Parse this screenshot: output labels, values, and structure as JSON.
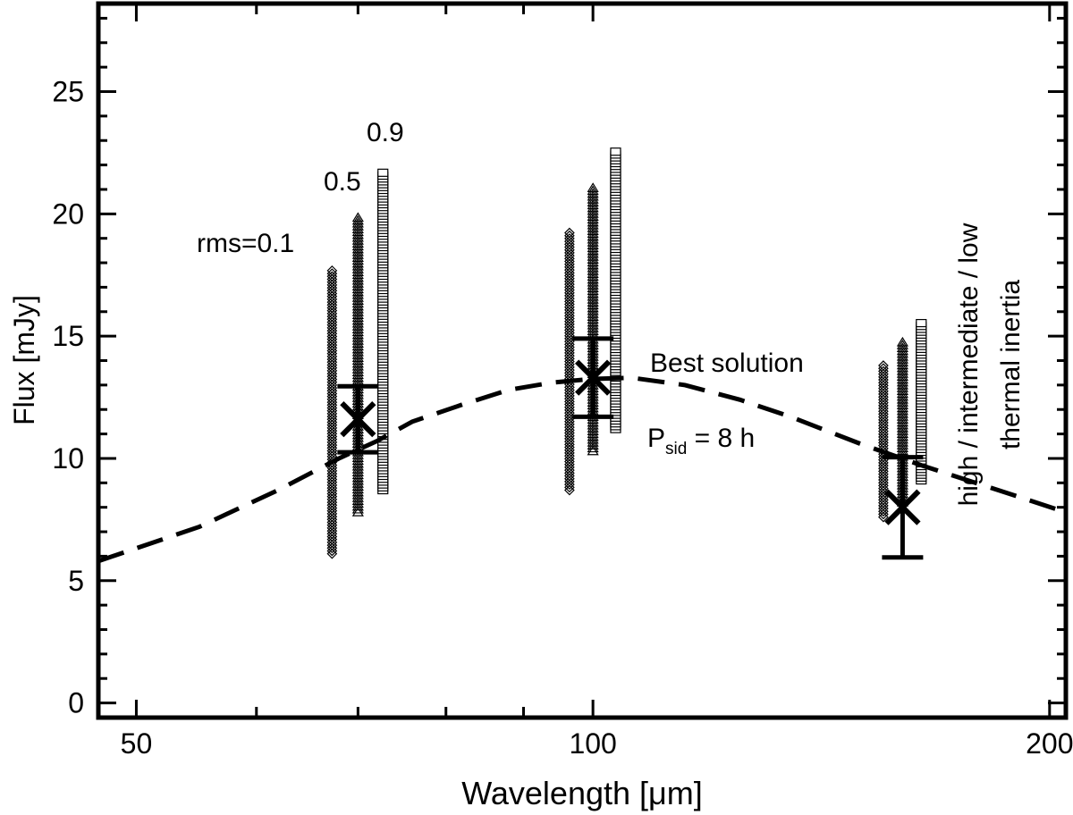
{
  "chart_data": {
    "type": "scatter",
    "xscale": "log",
    "xlim": [
      47.2,
      205
    ],
    "ylim": [
      -0.6,
      28.6
    ],
    "xlabel": "Wavelength [μm]",
    "ylabel": "Flux [mJy]",
    "xticks": [
      {
        "value": 50,
        "label": "50"
      },
      {
        "value": 100,
        "label": "100"
      },
      {
        "value": 200,
        "label": "200"
      }
    ],
    "yticks": [
      {
        "value": 0,
        "label": "0"
      },
      {
        "value": 5,
        "label": "5"
      },
      {
        "value": 10,
        "label": "10"
      },
      {
        "value": 15,
        "label": "15"
      },
      {
        "value": 20,
        "label": "20"
      },
      {
        "value": 25,
        "label": "25"
      }
    ],
    "model_curve": {
      "name": "Best solution",
      "style": "dashed",
      "x": [
        47.2,
        55,
        62,
        68,
        72,
        76,
        82,
        88,
        94,
        100,
        106,
        115,
        125,
        135,
        150,
        165,
        185,
        205
      ],
      "y": [
        5.8,
        7.2,
        8.7,
        10.0,
        10.7,
        11.5,
        12.2,
        12.8,
        13.1,
        13.25,
        13.3,
        13.0,
        12.4,
        11.7,
        10.6,
        9.7,
        8.7,
        7.8
      ]
    },
    "measurements": [
      {
        "wavelength": 70,
        "flux": 11.6,
        "error": 1.35
      },
      {
        "wavelength": 100,
        "flux": 13.3,
        "error": 1.6
      },
      {
        "wavelength": 160,
        "flux": 8.0,
        "error": 2.05
      }
    ],
    "model_ranges": [
      {
        "rms": 0.1,
        "marker": "diamond",
        "wavelength": 67.3,
        "min": 6.1,
        "max": 17.7
      },
      {
        "rms": 0.5,
        "marker": "triangle",
        "wavelength": 70,
        "min": 7.8,
        "max": 19.9
      },
      {
        "rms": 0.9,
        "marker": "square",
        "wavelength": 72.7,
        "min": 8.7,
        "max": 21.7
      },
      {
        "rms": 0.1,
        "marker": "diamond",
        "wavelength": 96.5,
        "min": 8.7,
        "max": 19.3
      },
      {
        "rms": 0.5,
        "marker": "triangle",
        "wavelength": 100,
        "min": 10.3,
        "max": 21.1
      },
      {
        "rms": 0.9,
        "marker": "square",
        "wavelength": 103.5,
        "min": 11.2,
        "max": 22.6
      },
      {
        "rms": 0.1,
        "marker": "diamond",
        "wavelength": 155.4,
        "min": 7.6,
        "max": 13.8
      },
      {
        "rms": 0.5,
        "marker": "triangle",
        "wavelength": 160,
        "min": 8.2,
        "max": 14.8
      },
      {
        "rms": 0.9,
        "marker": "square",
        "wavelength": 164.6,
        "min": 9.1,
        "max": 15.6
      }
    ],
    "annotations": {
      "rms_01": "rms=0.1",
      "rms_05": "0.5",
      "rms_09": "0.9",
      "best_solution": "Best solution",
      "psid_prefix": "P",
      "psid_sub": "sid",
      "psid_suffix": " = 8 h",
      "inertia_line1": "high / intermediate / low",
      "inertia_line2": "thermal inertia"
    }
  }
}
